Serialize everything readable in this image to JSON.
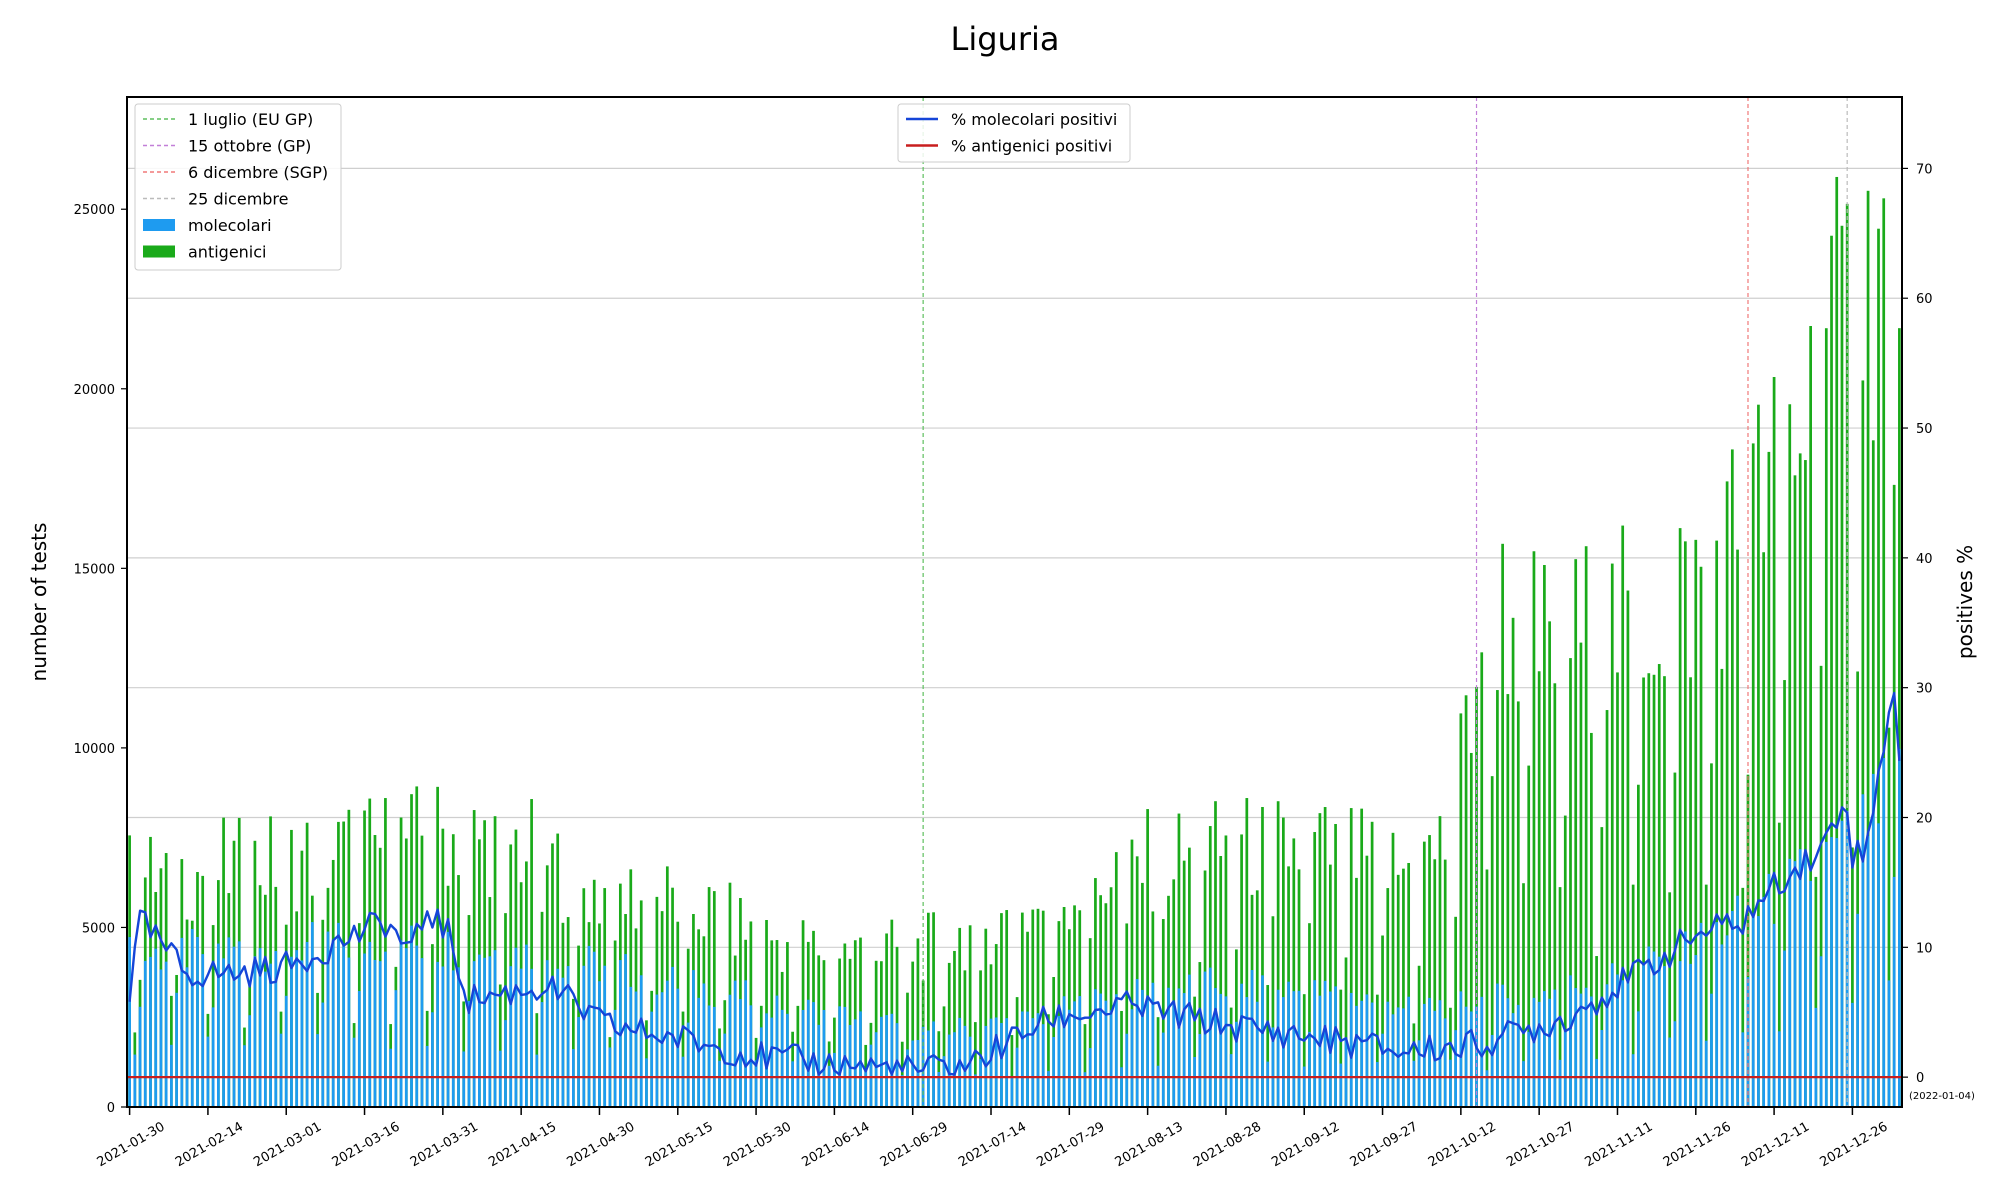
{
  "chart_data": {
    "type": "bar",
    "title": "Liguria",
    "ylabel_left": "number of tests",
    "ylabel_right": "positives %",
    "left_ylim": [
      0,
      28125
    ],
    "right_ylim": [
      -2.3,
      75.5
    ],
    "left_yticks": [
      0,
      5000,
      10000,
      15000,
      20000,
      25000
    ],
    "right_yticks": [
      0,
      10,
      20,
      30,
      40,
      50,
      60,
      70
    ],
    "grid": true,
    "x_start": "2021-01-30",
    "x_end": "2022-01-04",
    "xtick_labels": [
      "2021-01-30",
      "2021-02-14",
      "2021-03-01",
      "2021-03-16",
      "2021-03-31",
      "2021-04-15",
      "2021-04-30",
      "2021-05-15",
      "2021-05-30",
      "2021-06-14",
      "2021-06-29",
      "2021-07-14",
      "2021-07-29",
      "2021-08-13",
      "2021-08-28",
      "2021-09-12",
      "2021-09-27",
      "2021-10-12",
      "2021-10-27",
      "2021-11-11",
      "2021-11-26",
      "2021-12-11",
      "2021-12-26"
    ],
    "end_date_label": "(2022-01-04)",
    "legend_events_position": "top-left",
    "legend_lines_position": "top-center",
    "events": [
      {
        "label": "1 luglio (EU GP)",
        "date": "2021-07-01",
        "color": "#5fbf5f"
      },
      {
        "label": "15 ottobre (GP)",
        "date": "2021-10-15",
        "color": "#c27fd8"
      },
      {
        "label": "6 dicembre (SGP)",
        "date": "2021-12-06",
        "color": "#f07878"
      },
      {
        "label": "25 dicembre",
        "date": "2021-12-25",
        "color": "#bbbbbb"
      }
    ],
    "bar_series": [
      {
        "name": "molecolari",
        "color": "#1e9bf0"
      },
      {
        "name": "antigenici",
        "color": "#1aaa1a"
      }
    ],
    "line_series": [
      {
        "name": "% molecolari positivi",
        "color": "#1545d8"
      },
      {
        "name": "% antigenici positivi",
        "color": "#c81e1e"
      }
    ],
    "antigenici_positive_pct_const": 0.0,
    "anchors_molecolari_tests": [
      [
        "2021-01-30",
        4200
      ],
      [
        "2021-02-20",
        4400
      ],
      [
        "2021-03-20",
        4600
      ],
      [
        "2021-04-15",
        4300
      ],
      [
        "2021-05-01",
        3900
      ],
      [
        "2021-05-20",
        3300
      ],
      [
        "2021-06-10",
        2700
      ],
      [
        "2021-06-25",
        2300
      ],
      [
        "2021-07-01",
        2100
      ],
      [
        "2021-07-20",
        2400
      ],
      [
        "2021-08-05",
        3000
      ],
      [
        "2021-08-25",
        3400
      ],
      [
        "2021-09-15",
        3200
      ],
      [
        "2021-10-05",
        2800
      ],
      [
        "2021-10-25",
        3100
      ],
      [
        "2021-11-10",
        3600
      ],
      [
        "2021-11-26",
        4500
      ],
      [
        "2021-12-11",
        5800
      ],
      [
        "2021-12-26",
        7500
      ],
      [
        "2022-01-04",
        9000
      ]
    ],
    "anchors_total_tests": [
      [
        "2021-01-30",
        6200
      ],
      [
        "2021-02-20",
        6500
      ],
      [
        "2021-03-15",
        7000
      ],
      [
        "2021-03-31",
        7400
      ],
      [
        "2021-04-15",
        7100
      ],
      [
        "2021-04-30",
        5800
      ],
      [
        "2021-05-15",
        5600
      ],
      [
        "2021-06-01",
        4600
      ],
      [
        "2021-06-15",
        4200
      ],
      [
        "2021-07-01",
        4300
      ],
      [
        "2021-07-20",
        5200
      ],
      [
        "2021-08-10",
        6600
      ],
      [
        "2021-08-28",
        7000
      ],
      [
        "2021-09-15",
        7000
      ],
      [
        "2021-10-01",
        6400
      ],
      [
        "2021-10-10",
        7200
      ],
      [
        "2021-10-17",
        14000
      ],
      [
        "2021-10-27",
        12500
      ],
      [
        "2021-11-11",
        13000
      ],
      [
        "2021-11-26",
        14000
      ],
      [
        "2021-12-11",
        17000
      ],
      [
        "2021-12-25",
        21500
      ],
      [
        "2022-01-04",
        24000
      ]
    ],
    "anchors_molecolari_positive_pct": [
      [
        "2021-01-30",
        6.5
      ],
      [
        "2021-02-01",
        12.0
      ],
      [
        "2021-02-10",
        8.0
      ],
      [
        "2021-02-20",
        8.0
      ],
      [
        "2021-03-01",
        8.5
      ],
      [
        "2021-03-20",
        12.0
      ],
      [
        "2021-03-25",
        9.5
      ],
      [
        "2021-03-28",
        13.0
      ],
      [
        "2021-04-01",
        11.0
      ],
      [
        "2021-04-05",
        6.0
      ],
      [
        "2021-04-20",
        7.0
      ],
      [
        "2021-05-01",
        4.0
      ],
      [
        "2021-05-15",
        3.0
      ],
      [
        "2021-06-01",
        1.5
      ],
      [
        "2021-06-15",
        1.0
      ],
      [
        "2021-06-30",
        0.5
      ],
      [
        "2021-07-10",
        1.0
      ],
      [
        "2021-07-25",
        4.5
      ],
      [
        "2021-08-10",
        5.5
      ],
      [
        "2021-08-28",
        4.0
      ],
      [
        "2021-09-15",
        3.0
      ],
      [
        "2021-10-01",
        2.0
      ],
      [
        "2021-10-15",
        2.5
      ],
      [
        "2021-11-01",
        4.5
      ],
      [
        "2021-11-15",
        8.0
      ],
      [
        "2021-11-26",
        11.0
      ],
      [
        "2021-12-05",
        12.0
      ],
      [
        "2021-12-13",
        15.5
      ],
      [
        "2021-12-20",
        17.5
      ],
      [
        "2021-12-25",
        21.5
      ],
      [
        "2021-12-26",
        17.0
      ],
      [
        "2021-12-29",
        18.0
      ],
      [
        "2022-01-02",
        28.5
      ],
      [
        "2022-01-03",
        30.0
      ],
      [
        "2022-01-04",
        24.5
      ]
    ]
  }
}
